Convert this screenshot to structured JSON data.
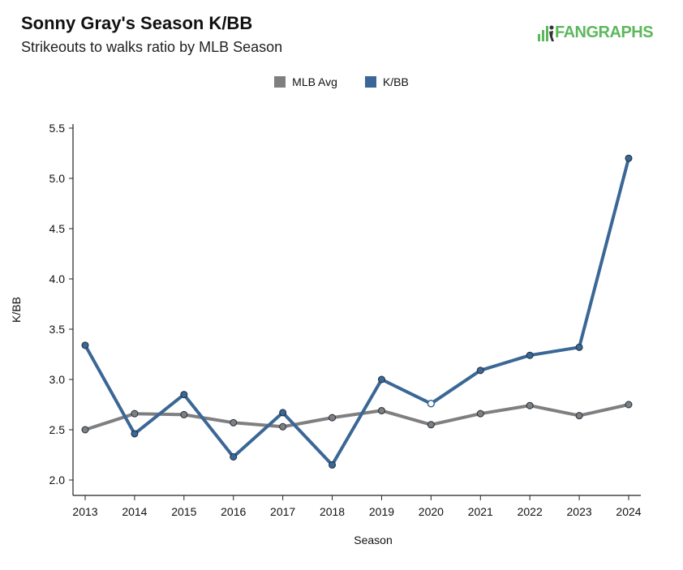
{
  "header": {
    "title": "Sonny Gray's Season K/BB",
    "subtitle": "Strikeouts to walks ratio by MLB Season",
    "logo_text": "FANGRAPHS"
  },
  "colors": {
    "mlb_avg": "#7f7f7f",
    "kbb": "#3a6795",
    "logo": "#5cb85c"
  },
  "chart_data": {
    "type": "line",
    "title": "Sonny Gray's Season K/BB",
    "subtitle": "Strikeouts to walks ratio by MLB Season",
    "xlabel": "Season",
    "ylabel": "K/BB",
    "x": [
      "2013",
      "2014",
      "2015",
      "2016",
      "2017",
      "2018",
      "2019",
      "2020",
      "2021",
      "2022",
      "2023",
      "2024"
    ],
    "ylim": [
      1.9,
      5.55
    ],
    "yticks": [
      "2.0",
      "2.5",
      "3.0",
      "3.5",
      "4.0",
      "4.5",
      "5.0",
      "5.5"
    ],
    "legend_position": "top-center",
    "grid": false,
    "series": [
      {
        "name": "MLB Avg",
        "color": "#7f7f7f",
        "values": [
          2.5,
          2.66,
          2.65,
          2.57,
          2.53,
          2.62,
          2.69,
          2.55,
          2.66,
          2.74,
          2.64,
          2.75
        ]
      },
      {
        "name": "K/BB",
        "color": "#3a6795",
        "values": [
          3.34,
          2.46,
          2.85,
          2.23,
          2.67,
          2.15,
          3.0,
          2.76,
          3.09,
          3.24,
          3.32,
          5.2
        ],
        "hollow_points": [
          "2020"
        ]
      }
    ]
  }
}
